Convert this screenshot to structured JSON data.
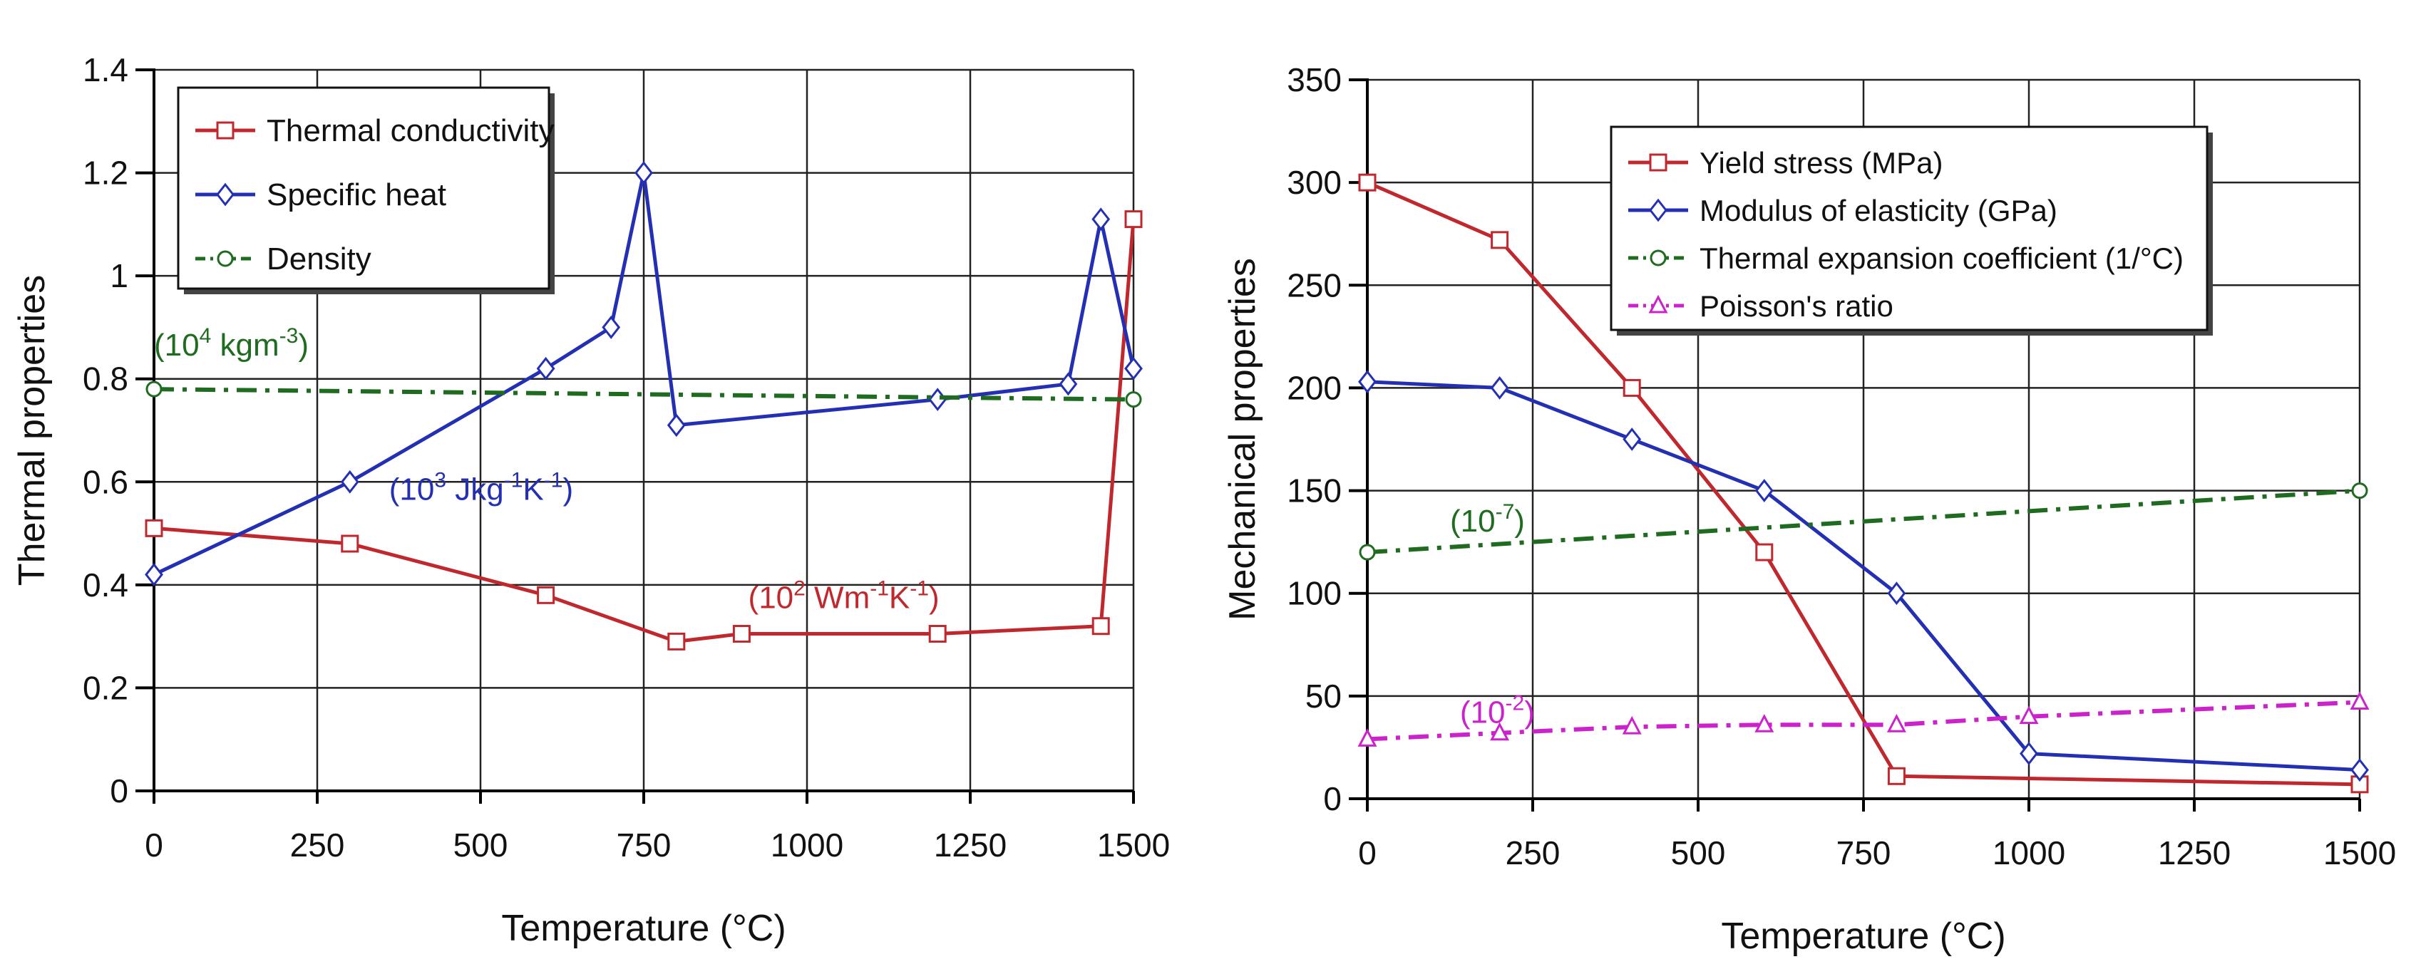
{
  "chart_data": [
    {
      "type": "line",
      "xlabel": "Temperature (°C)",
      "ylabel": "Thermal properties",
      "xlim": [
        0,
        1500
      ],
      "ylim": [
        0,
        1.4
      ],
      "xticks": [
        0,
        250,
        500,
        750,
        1000,
        1250,
        1500
      ],
      "yticks": [
        0,
        0.2,
        0.4,
        0.6,
        0.8,
        1,
        1.2,
        1.4
      ],
      "xtick_labels": [
        "0",
        "250",
        "500",
        "750",
        "1000",
        "1250",
        "1500"
      ],
      "ytick_labels": [
        "0",
        "0.2",
        "0.4",
        "0.6",
        "0.8",
        "1",
        "1.2",
        "1.4"
      ],
      "grid": true,
      "legend_position": "top-left",
      "series": [
        {
          "name": "Thermal conductivity",
          "color": "#c0282d",
          "dash": "solid",
          "marker": "square",
          "points": [
            [
              0,
              0.51
            ],
            [
              300,
              0.48
            ],
            [
              600,
              0.38
            ],
            [
              800,
              0.29
            ],
            [
              900,
              0.305
            ],
            [
              1200,
              0.305
            ],
            [
              1450,
              0.32
            ],
            [
              1500,
              1.11
            ]
          ]
        },
        {
          "name": "Specific heat",
          "color": "#2430b4",
          "dash": "solid",
          "marker": "diamond",
          "points": [
            [
              0,
              0.42
            ],
            [
              300,
              0.6
            ],
            [
              600,
              0.82
            ],
            [
              700,
              0.9
            ],
            [
              750,
              1.2
            ],
            [
              800,
              0.71
            ],
            [
              1200,
              0.76
            ],
            [
              1400,
              0.79
            ],
            [
              1450,
              1.11
            ],
            [
              1500,
              0.82
            ]
          ]
        },
        {
          "name": "Density",
          "color": "#1f6b1f",
          "dash": "dashdot",
          "marker": "circle",
          "points": [
            [
              0,
              0.78
            ],
            [
              1500,
              0.76
            ]
          ]
        }
      ],
      "annotations": [
        {
          "id": "density-unit",
          "base": "(10",
          "sup1": "4",
          "mid": " kgm",
          "sup2": "-3",
          "end": ")",
          "color": "#1f6b1f",
          "x": 0,
          "y": 0.845
        },
        {
          "id": "heat-unit",
          "base": "(10",
          "sup1": "3",
          "mid": " Jkg",
          "sup2": "-1",
          "mid2": "K",
          "sup3": "-1",
          "end": ")",
          "color": "#2430b4",
          "x": 360,
          "y": 0.565
        },
        {
          "id": "conductivity-unit",
          "base": "(10",
          "sup1": "2",
          "mid": " Wm",
          "sup2": "-1",
          "mid2": "K",
          "sup3": "-1",
          "end": ")",
          "color": "#c0282d",
          "x": 910,
          "y": 0.355
        }
      ]
    },
    {
      "type": "line",
      "xlabel": "Temperature (°C)",
      "ylabel": "Mechanical properties",
      "xlim": [
        0,
        1500
      ],
      "ylim": [
        0,
        350
      ],
      "xticks": [
        0,
        250,
        500,
        750,
        1000,
        1250,
        1500
      ],
      "yticks": [
        0,
        50,
        100,
        150,
        200,
        250,
        300,
        350
      ],
      "xtick_labels": [
        "0",
        "250",
        "500",
        "750",
        "1000",
        "1250",
        "1500"
      ],
      "ytick_labels": [
        "0",
        "50",
        "100",
        "150",
        "200",
        "250",
        "300",
        "350"
      ],
      "grid": true,
      "legend_position": "top-right",
      "series": [
        {
          "name": "Yield stress (MPa)",
          "color": "#c0282d",
          "dash": "solid",
          "marker": "square",
          "points": [
            [
              0,
              300
            ],
            [
              200,
              272
            ],
            [
              400,
              200
            ],
            [
              600,
              120
            ],
            [
              800,
              11
            ],
            [
              1500,
              7
            ]
          ]
        },
        {
          "name": "Modulus of elasticity (GPa)",
          "color": "#2430b4",
          "dash": "solid",
          "marker": "diamond",
          "points": [
            [
              0,
              203
            ],
            [
              200,
              200
            ],
            [
              400,
              175
            ],
            [
              600,
              150
            ],
            [
              800,
              100
            ],
            [
              1000,
              22
            ],
            [
              1500,
              14
            ]
          ]
        },
        {
          "name": "Thermal expansion coefficient (1/°C)",
          "color": "#1f6b1f",
          "dash": "dashdot",
          "marker": "circle",
          "points": [
            [
              0,
              120
            ],
            [
              1500,
              150
            ]
          ]
        },
        {
          "name": "Poisson's ratio",
          "color": "#cc22cc",
          "dash": "dashdot",
          "marker": "triangle",
          "points": [
            [
              0,
              29
            ],
            [
              200,
              32
            ],
            [
              400,
              35
            ],
            [
              600,
              36
            ],
            [
              800,
              36
            ],
            [
              1000,
              40
            ],
            [
              1500,
              47
            ]
          ]
        }
      ],
      "annotations": [
        {
          "id": "expansion-unit",
          "base": "(10",
          "sup1": "-7",
          "end": ")",
          "color": "#1f6b1f",
          "x": 125,
          "y": 130
        },
        {
          "id": "poisson-unit",
          "base": "(10",
          "sup1": "-2",
          "end": ")",
          "color": "#cc22cc",
          "x": 140,
          "y": 37
        }
      ]
    }
  ]
}
